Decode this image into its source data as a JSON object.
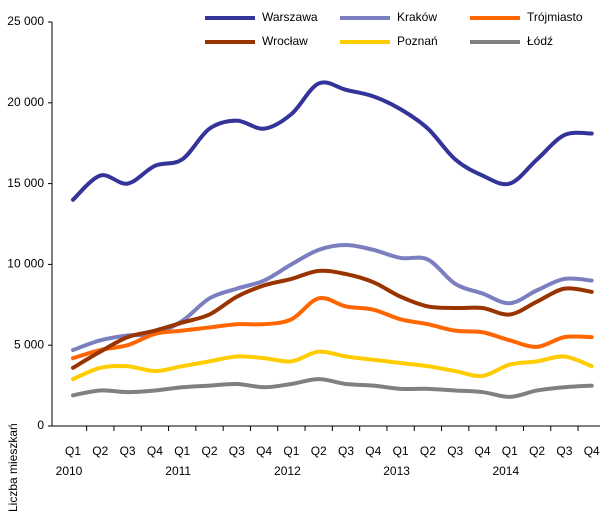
{
  "chart_data": {
    "type": "line",
    "y_label": "Liczba mieszkań",
    "categories": [
      "Q1",
      "Q2",
      "Q3",
      "Q4",
      "Q1",
      "Q2",
      "Q3",
      "Q4",
      "Q1",
      "Q2",
      "Q3",
      "Q4",
      "Q1",
      "Q2",
      "Q3",
      "Q4",
      "Q1",
      "Q2",
      "Q3",
      "Q4"
    ],
    "years": [
      "2010",
      "2011",
      "2012",
      "2013",
      "2014"
    ],
    "ylim": [
      0,
      25000
    ],
    "yticks": [
      0,
      {
        "value": 5000,
        "label": "5 000"
      },
      {
        "value": 10000,
        "label": "10 000"
      },
      {
        "value": 15000,
        "label": "15 000"
      },
      {
        "value": 20000,
        "label": "20 000"
      },
      {
        "value": 25000,
        "label": "25 000"
      }
    ],
    "grid": false,
    "legend": "top",
    "series": [
      {
        "name": "Warszawa",
        "color": "#333399",
        "values": [
          14000,
          15500,
          15000,
          16100,
          16500,
          18400,
          18900,
          18400,
          19300,
          21200,
          20800,
          20400,
          19600,
          18400,
          16500,
          15500,
          15000,
          16500,
          18000,
          18100
        ]
      },
      {
        "name": "Kraków",
        "color": "#7b7fbf",
        "values": [
          4700,
          5300,
          5600,
          5700,
          6500,
          7900,
          8500,
          9000,
          10000,
          10900,
          11200,
          10900,
          10400,
          10300,
          8800,
          8200,
          7600,
          8400,
          9100,
          9000
        ]
      },
      {
        "name": "Trójmiasto",
        "color": "#ff6600",
        "values": [
          4200,
          4700,
          5000,
          5700,
          5900,
          6100,
          6300,
          6300,
          6600,
          7900,
          7400,
          7200,
          6600,
          6300,
          5900,
          5800,
          5300,
          4900,
          5500,
          5500
        ]
      },
      {
        "name": "Wrocław",
        "color": "#993300",
        "values": [
          3600,
          4600,
          5500,
          5900,
          6400,
          6900,
          8000,
          8700,
          9100,
          9600,
          9400,
          8900,
          8000,
          7400,
          7300,
          7300,
          6900,
          7700,
          8500,
          8300
        ]
      },
      {
        "name": "Poznań",
        "color": "#ffcc00",
        "values": [
          2900,
          3600,
          3700,
          3400,
          3700,
          4000,
          4300,
          4200,
          4000,
          4600,
          4300,
          4100,
          3900,
          3700,
          3400,
          3100,
          3800,
          4000,
          4300,
          3700
        ]
      },
      {
        "name": "Łódź",
        "color": "#808080",
        "values": [
          1900,
          2200,
          2100,
          2200,
          2400,
          2500,
          2600,
          2400,
          2600,
          2900,
          2600,
          2500,
          2300,
          2300,
          2200,
          2100,
          1800,
          2200,
          2400,
          2500
        ]
      }
    ]
  }
}
